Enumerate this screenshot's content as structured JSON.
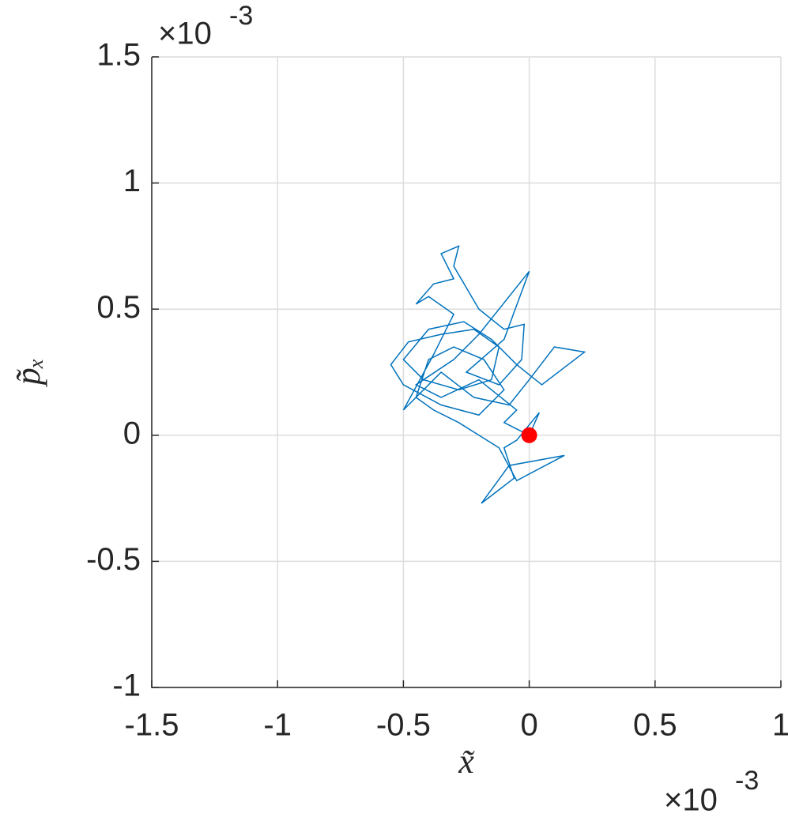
{
  "chart_data": {
    "type": "line",
    "x_label": "x̃",
    "y_label": "p̃ₓ",
    "x_multiplier": {
      "base": "×10",
      "exponent": "-3"
    },
    "y_multiplier": {
      "base": "×10",
      "exponent": "-3"
    },
    "xlim": [
      -1.5,
      1
    ],
    "ylim": [
      -1,
      1.5
    ],
    "xticks": [
      -1.5,
      -1,
      -0.5,
      0,
      0.5,
      1
    ],
    "yticks": [
      -1,
      -0.5,
      0,
      0.5,
      1,
      1.5
    ],
    "grid": true,
    "series": [
      {
        "color": "#0072bd",
        "x": [
          0,
          0.04,
          -0.05,
          -0.1,
          -0.06,
          -0.19,
          -0.08,
          0.14,
          -0.05,
          -0.12,
          -0.2,
          -0.28,
          -0.38,
          -0.45,
          -0.4,
          -0.3,
          -0.18,
          -0.1,
          -0.2,
          -0.35,
          -0.5,
          -0.55,
          -0.48,
          -0.35,
          -0.22,
          -0.12,
          -0.15,
          -0.28,
          -0.42,
          -0.5,
          -0.4,
          -0.26,
          -0.15,
          -0.05,
          0.05,
          0.22,
          0.1,
          0.0,
          -0.08,
          -0.22,
          -0.35,
          -0.5,
          -0.38,
          -0.3,
          -0.4,
          -0.45,
          -0.38,
          -0.3,
          -0.35,
          -0.28,
          -0.3,
          -0.2,
          -0.1,
          -0.02,
          -0.03,
          -0.12,
          -0.25,
          -0.1,
          0.0,
          -0.2,
          -0.3,
          -0.45,
          -0.35,
          -0.2,
          -0.05,
          -0.1,
          0.0
        ],
        "values": [
          0,
          0.09,
          -0.02,
          -0.05,
          -0.17,
          -0.27,
          -0.12,
          -0.08,
          -0.18,
          -0.05,
          0.0,
          0.05,
          0.1,
          0.15,
          0.3,
          0.35,
          0.3,
          0.18,
          0.08,
          0.12,
          0.2,
          0.28,
          0.37,
          0.4,
          0.42,
          0.35,
          0.22,
          0.18,
          0.22,
          0.3,
          0.42,
          0.45,
          0.38,
          0.28,
          0.2,
          0.33,
          0.35,
          0.22,
          0.12,
          0.15,
          0.25,
          0.1,
          0.32,
          0.48,
          0.55,
          0.52,
          0.6,
          0.62,
          0.72,
          0.75,
          0.67,
          0.5,
          0.42,
          0.44,
          0.3,
          0.2,
          0.25,
          0.38,
          0.65,
          0.4,
          0.3,
          0.2,
          0.15,
          0.22,
          0.1,
          0.05,
          0.0
        ]
      },
      {
        "type": "scatter",
        "color": "#ff0000",
        "x": [
          0
        ],
        "values": [
          0
        ]
      }
    ]
  }
}
